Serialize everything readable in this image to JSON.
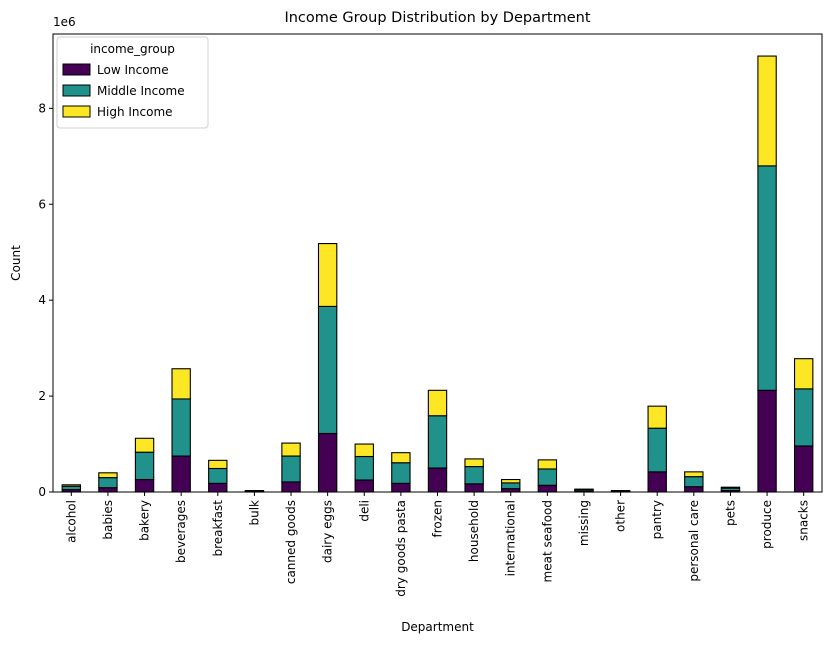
{
  "chart_data": {
    "type": "bar",
    "stacked": true,
    "title": "Income Group Distribution by Department",
    "xlabel": "Department",
    "ylabel": "Count",
    "y_scale_label": "1e6",
    "y_unit_factor": 1000000,
    "ylim": [
      0,
      9.55
    ],
    "yticks": [
      0,
      2,
      4,
      6,
      8
    ],
    "ytick_labels": [
      "0",
      "2",
      "4",
      "6",
      "8"
    ],
    "legend_title": "income_group",
    "legend_position": "top-left",
    "grid": false,
    "categories": [
      "alcohol",
      "babies",
      "bakery",
      "beverages",
      "breakfast",
      "bulk",
      "canned goods",
      "dairy eggs",
      "deli",
      "dry goods pasta",
      "frozen",
      "household",
      "international",
      "meat seafood",
      "missing",
      "other",
      "pantry",
      "personal care",
      "pets",
      "produce",
      "snacks"
    ],
    "series": [
      {
        "name": "Low Income",
        "color": "#440154",
        "values": [
          0.05,
          0.09,
          0.26,
          0.75,
          0.18,
          0.01,
          0.21,
          1.22,
          0.25,
          0.18,
          0.5,
          0.17,
          0.07,
          0.14,
          0.02,
          0.01,
          0.42,
          0.11,
          0.03,
          2.12,
          0.96
        ]
      },
      {
        "name": "Middle Income",
        "color": "#21918c",
        "values": [
          0.07,
          0.21,
          0.57,
          1.19,
          0.31,
          0.01,
          0.54,
          2.65,
          0.49,
          0.43,
          1.09,
          0.36,
          0.12,
          0.34,
          0.03,
          0.01,
          0.91,
          0.21,
          0.05,
          4.68,
          1.19
        ]
      },
      {
        "name": "High Income",
        "color": "#fde725",
        "values": [
          0.03,
          0.1,
          0.29,
          0.63,
          0.17,
          0.01,
          0.27,
          1.31,
          0.26,
          0.21,
          0.53,
          0.16,
          0.07,
          0.19,
          0.01,
          0.01,
          0.46,
          0.1,
          0.02,
          2.29,
          0.63
        ]
      }
    ]
  }
}
